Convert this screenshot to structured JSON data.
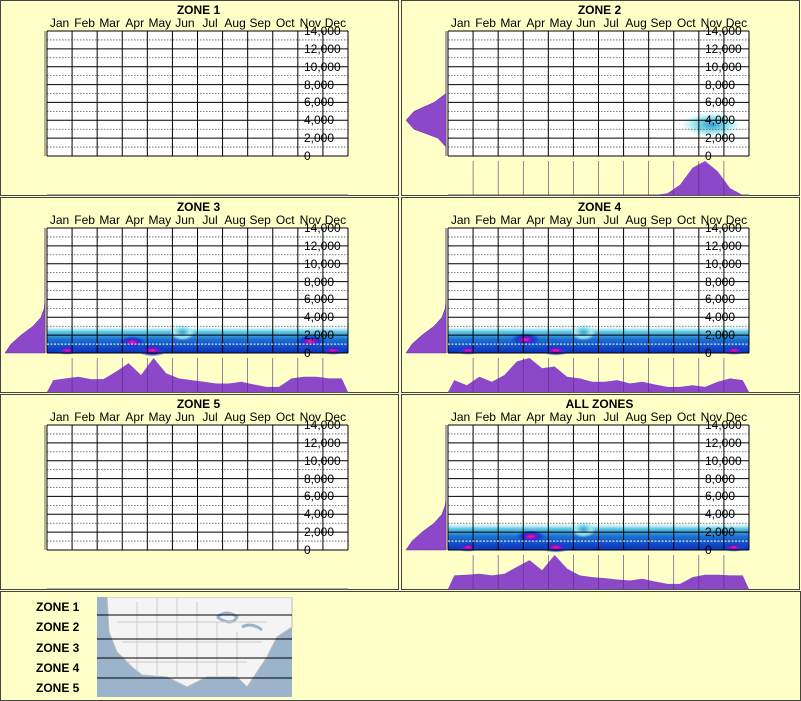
{
  "months": [
    "Jan",
    "Feb",
    "Mar",
    "Apr",
    "May",
    "Jun",
    "Jul",
    "Aug",
    "Sep",
    "Oct",
    "Nov",
    "Dec"
  ],
  "y_ticks": [
    "14,000",
    "12,000",
    "10,000",
    "8,000",
    "6,000",
    "4,000",
    "2,000",
    "0"
  ],
  "chart_data": [
    {
      "type": "heatmap",
      "title": "ZONE 1",
      "ylim": [
        0,
        14000
      ],
      "blobs": [],
      "month_density": [],
      "elev_density": [],
      "median_elevation": null
    },
    {
      "type": "heatmap",
      "title": "ZONE 2",
      "ylim": [
        0,
        14000
      ],
      "blobs": [
        {
          "month": 10.5,
          "elev": 3500,
          "level": 0.45,
          "rx": 1.2,
          "ry": 1400
        }
      ],
      "month_density": [
        0,
        0,
        0,
        0,
        0,
        0,
        0,
        0,
        0,
        0,
        0,
        0,
        0,
        0,
        0,
        0,
        0,
        0.05,
        0.3,
        0.8,
        1.0,
        0.7,
        0.2,
        0
      ],
      "elev_density": [
        0,
        0,
        0.2,
        0.8,
        1.0,
        0.8,
        0.3,
        0,
        0,
        0,
        0,
        0,
        0,
        0,
        0
      ],
      "median_elevation": null
    },
    {
      "type": "heatmap",
      "title": "ZONE 3",
      "ylim": [
        0,
        14000
      ],
      "blobs": [
        {
          "month": 0.8,
          "elev": 300,
          "level": 0.9,
          "rx": 0.5,
          "ry": 500
        },
        {
          "month": 3.4,
          "elev": 1200,
          "level": 0.9,
          "rx": 0.5,
          "ry": 700
        },
        {
          "month": 4.2,
          "elev": 300,
          "level": 1,
          "rx": 0.6,
          "ry": 700
        },
        {
          "month": 5.4,
          "elev": 2300,
          "level": 0.5,
          "rx": 0.5,
          "ry": 900
        },
        {
          "month": 10.5,
          "elev": 1300,
          "level": 0.7,
          "rx": 0.6,
          "ry": 700
        },
        {
          "month": 11.4,
          "elev": 300,
          "level": 0.9,
          "rx": 0.5,
          "ry": 500
        }
      ],
      "month_density": [
        0.35,
        0.4,
        0.45,
        0.38,
        0.38,
        0.6,
        0.85,
        0.5,
        1.0,
        0.55,
        0.4,
        0.35,
        0.3,
        0.25,
        0.25,
        0.3,
        0.22,
        0.15,
        0.15,
        0.4,
        0.45,
        0.45,
        0.4,
        0.4
      ],
      "elev_density": [
        1.0,
        0.85,
        0.6,
        0.3,
        0.1,
        0.02,
        0,
        0,
        0,
        0,
        0,
        0,
        0,
        0,
        0
      ],
      "median_elevation": 1000
    },
    {
      "type": "heatmap",
      "title": "ZONE 4",
      "ylim": [
        0,
        14000
      ],
      "blobs": [
        {
          "month": 0.8,
          "elev": 300,
          "level": 0.9,
          "rx": 0.5,
          "ry": 500
        },
        {
          "month": 3.1,
          "elev": 1500,
          "level": 0.8,
          "rx": 0.6,
          "ry": 700
        },
        {
          "month": 4.3,
          "elev": 300,
          "level": 1,
          "rx": 0.6,
          "ry": 600
        },
        {
          "month": 5.4,
          "elev": 2300,
          "level": 0.45,
          "rx": 0.5,
          "ry": 900
        },
        {
          "month": 11.4,
          "elev": 300,
          "level": 0.9,
          "rx": 0.5,
          "ry": 500
        }
      ],
      "month_density": [
        0.35,
        0.2,
        0.45,
        0.3,
        0.5,
        0.9,
        1.0,
        0.7,
        0.75,
        0.45,
        0.4,
        0.3,
        0.3,
        0.35,
        0.25,
        0.3,
        0.22,
        0.15,
        0.15,
        0.2,
        0.15,
        0.3,
        0.4,
        0.35
      ],
      "elev_density": [
        1.0,
        0.85,
        0.6,
        0.3,
        0.1,
        0.02,
        0,
        0,
        0,
        0,
        0,
        0,
        0,
        0,
        0
      ],
      "median_elevation": 1000
    },
    {
      "type": "heatmap",
      "title": "ZONE 5",
      "ylim": [
        0,
        14000
      ],
      "blobs": [],
      "month_density": [],
      "elev_density": [],
      "median_elevation": null
    },
    {
      "type": "heatmap",
      "title": "ALL ZONES",
      "ylim": [
        0,
        14000
      ],
      "blobs": [
        {
          "month": 0.8,
          "elev": 300,
          "level": 0.9,
          "rx": 0.5,
          "ry": 500
        },
        {
          "month": 3.3,
          "elev": 1500,
          "level": 0.85,
          "rx": 0.6,
          "ry": 700
        },
        {
          "month": 4.3,
          "elev": 300,
          "level": 1,
          "rx": 0.6,
          "ry": 600
        },
        {
          "month": 5.4,
          "elev": 2300,
          "level": 0.45,
          "rx": 0.5,
          "ry": 900
        },
        {
          "month": 11.4,
          "elev": 300,
          "level": 0.9,
          "rx": 0.5,
          "ry": 500
        }
      ],
      "month_density": [
        0.4,
        0.42,
        0.45,
        0.4,
        0.45,
        0.65,
        0.85,
        0.55,
        1.0,
        0.6,
        0.4,
        0.35,
        0.32,
        0.28,
        0.25,
        0.3,
        0.22,
        0.15,
        0.15,
        0.35,
        0.42,
        0.42,
        0.4,
        0.4
      ],
      "elev_density": [
        1.0,
        0.85,
        0.6,
        0.3,
        0.1,
        0.02,
        0,
        0,
        0,
        0,
        0,
        0,
        0,
        0,
        0
      ],
      "median_elevation": 1000
    }
  ],
  "legend": {
    "zones": [
      "ZONE 1",
      "ZONE 2",
      "ZONE 3",
      "ZONE 4",
      "ZONE 5"
    ]
  },
  "colors": {
    "background": "#ffffc8",
    "density": "#8c48c8",
    "band": "#1050c8",
    "hot": "#ff2080",
    "light": "#a0e8f0"
  }
}
